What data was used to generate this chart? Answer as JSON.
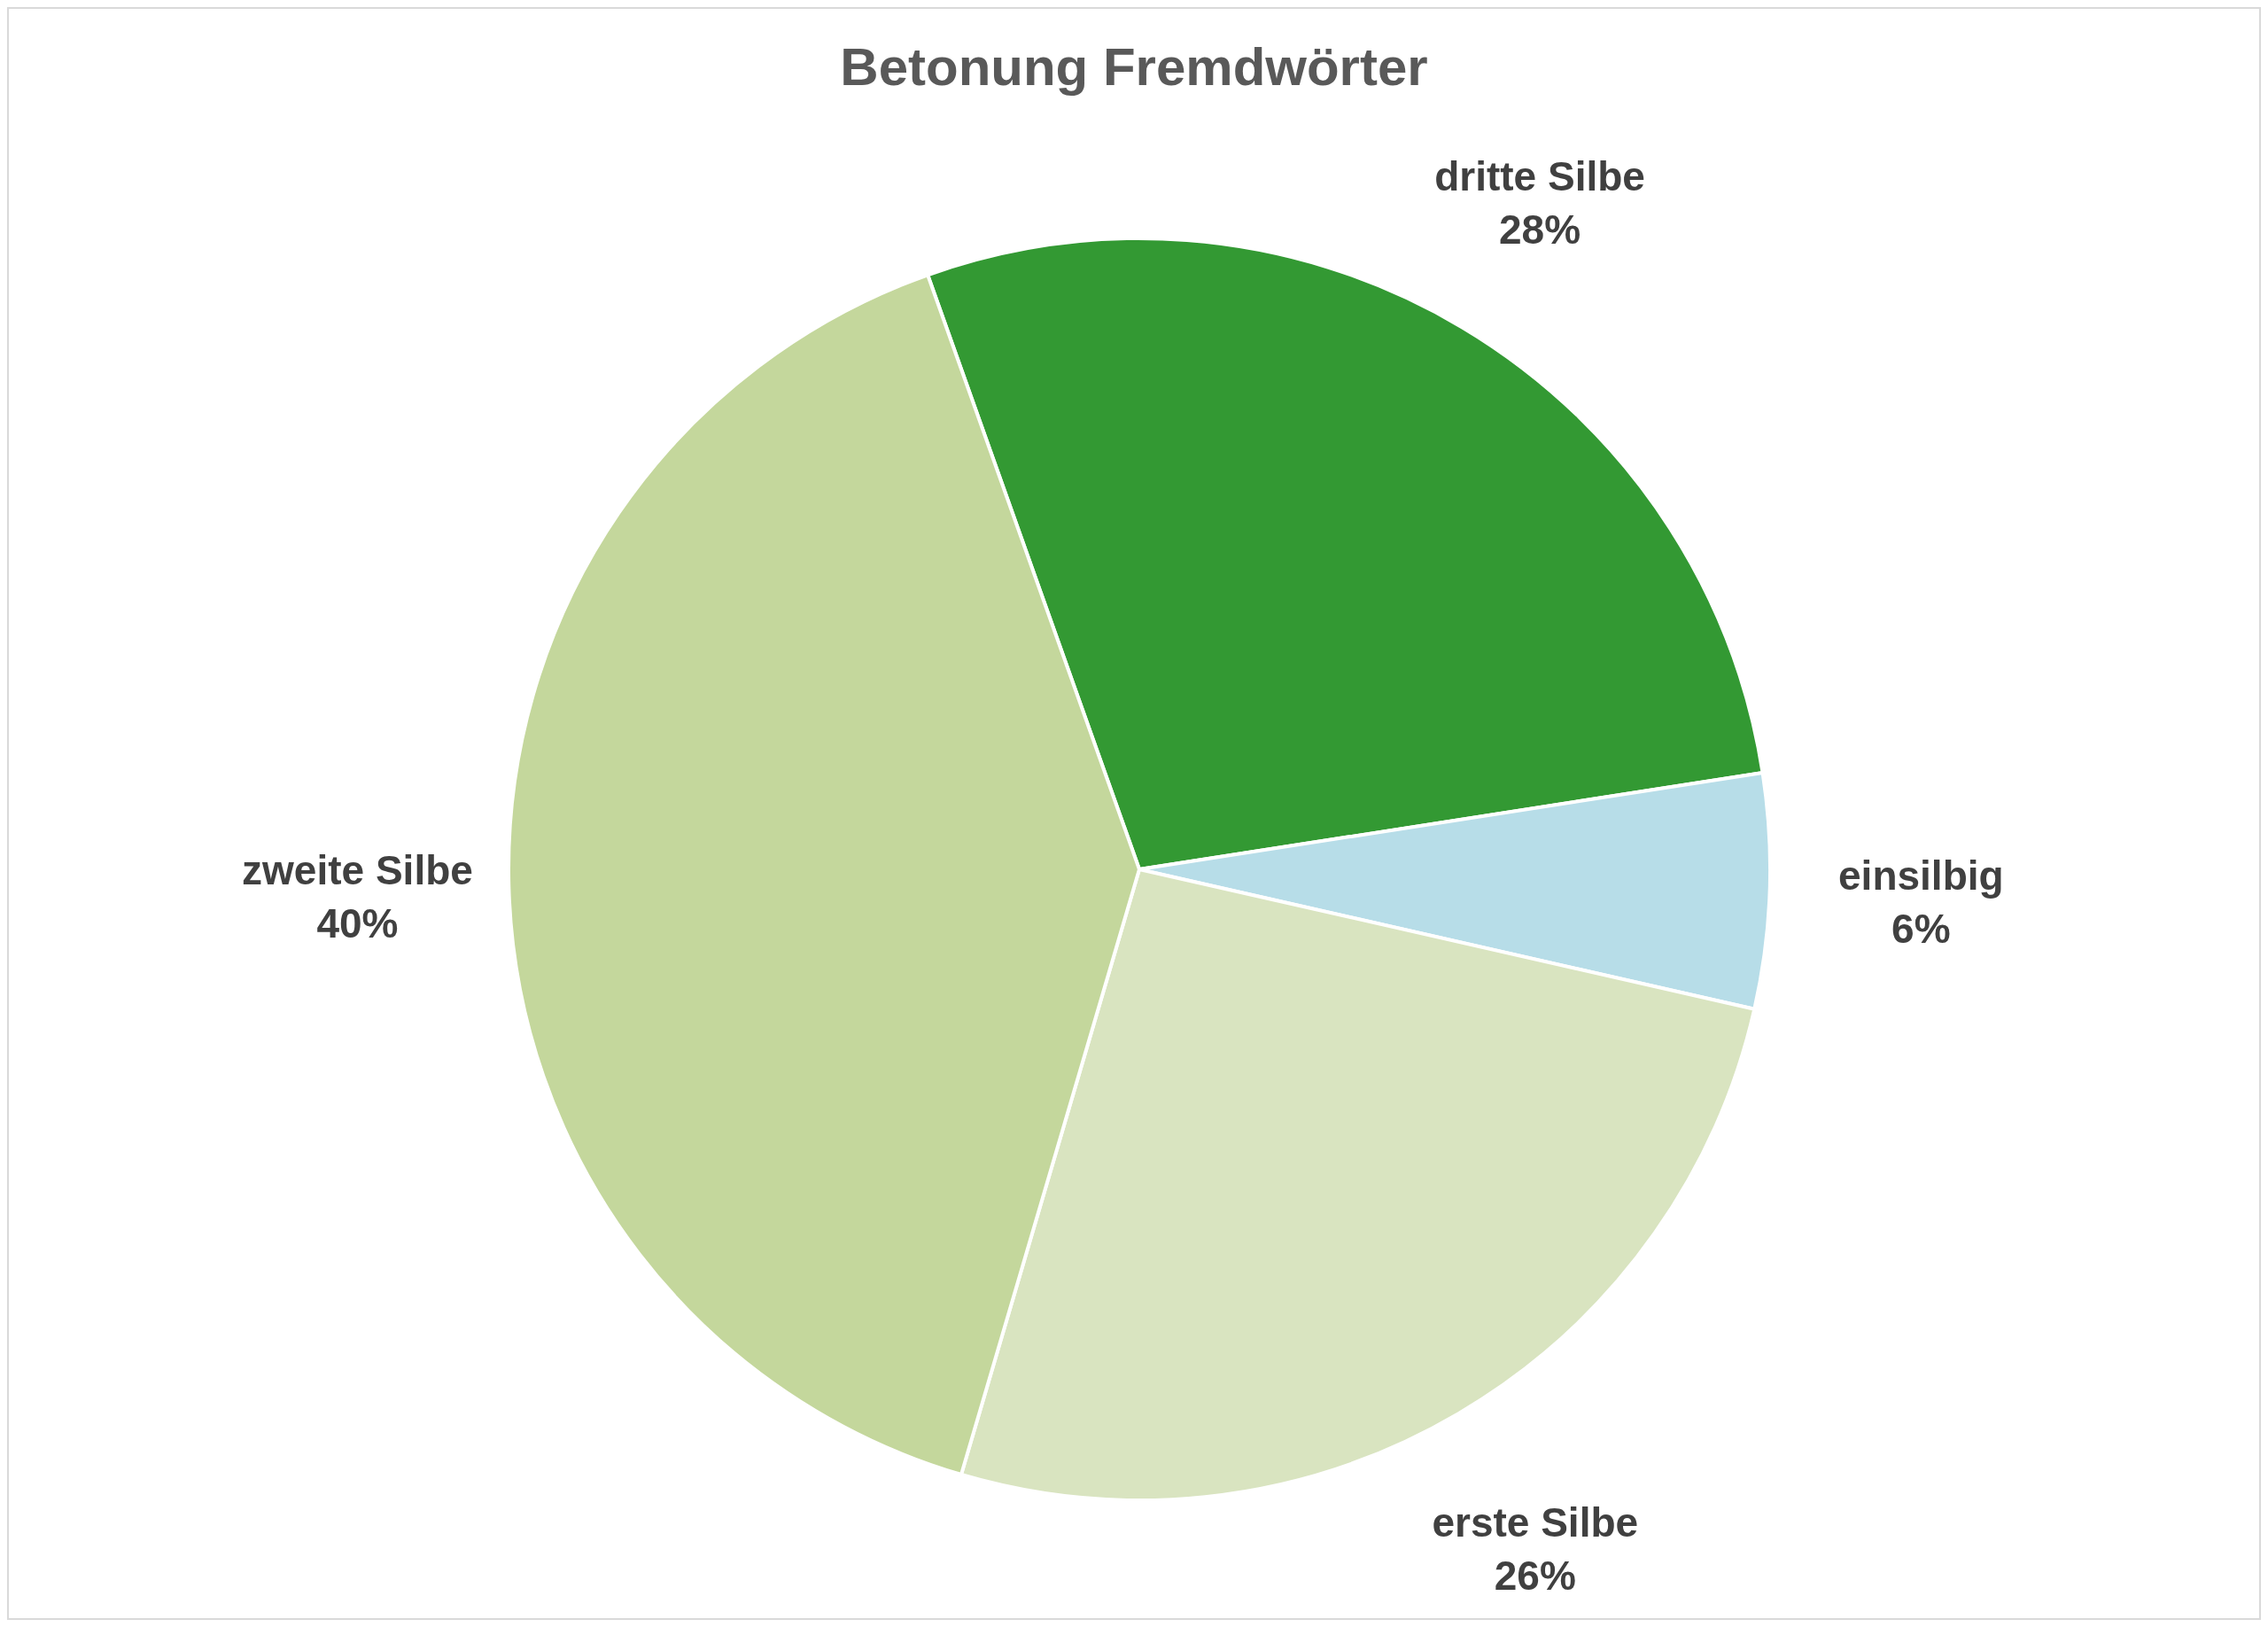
{
  "chart_data": {
    "type": "pie",
    "title": "Betonung Fremdwörter",
    "categories": [
      "dritte Silbe",
      "einsilbig",
      "erste Silbe",
      "zweite Silbe"
    ],
    "values": [
      28,
      6,
      26,
      40
    ],
    "colors": [
      "#339933",
      "#b7dde8",
      "#d9e4c0",
      "#c4d79c"
    ],
    "value_labels": [
      "28%",
      "6%",
      "26%",
      "40%"
    ],
    "legend": false
  }
}
